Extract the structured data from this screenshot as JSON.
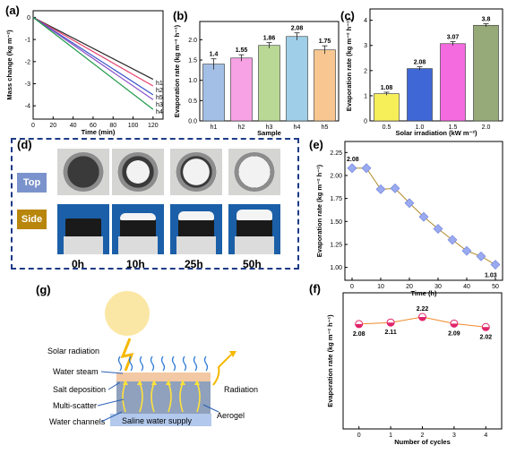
{
  "panels": {
    "a": "(a)",
    "b": "(b)",
    "c": "(c)",
    "d": "(d)",
    "e": "(e)",
    "f": "(f)",
    "g": "(g)"
  },
  "chart_data": [
    {
      "id": "a",
      "type": "line",
      "xlabel": "Time (min)",
      "ylabel": "Mass change (kg m⁻²)",
      "xlim": [
        0,
        130
      ],
      "ylim": [
        -4.6,
        0.3
      ],
      "xticks": [
        0,
        20,
        40,
        60,
        80,
        100,
        120
      ],
      "yticks": [
        0,
        -1,
        -2,
        -3,
        -4
      ],
      "series": [
        {
          "name": "h1",
          "color": "#2b2b2b",
          "x": [
            0,
            120
          ],
          "y": [
            0,
            -2.8
          ]
        },
        {
          "name": "h2",
          "color": "#e8426c",
          "x": [
            0,
            120
          ],
          "y": [
            0,
            -3.1
          ]
        },
        {
          "name": "h5",
          "color": "#3953c9",
          "x": [
            0,
            120
          ],
          "y": [
            0,
            -3.5
          ]
        },
        {
          "name": "h3",
          "color": "#8a4fc7",
          "x": [
            0,
            120
          ],
          "y": [
            0,
            -3.72
          ]
        },
        {
          "name": "h4",
          "color": "#1f9a4a",
          "x": [
            0,
            120
          ],
          "y": [
            0,
            -4.16
          ]
        }
      ]
    },
    {
      "id": "b",
      "type": "bar",
      "xlabel": "Sample",
      "ylabel": "Evaporation rate (kg m⁻² h⁻¹)",
      "ylim": [
        0,
        2.45
      ],
      "yticks": [
        0.0,
        0.5,
        1.0,
        1.5,
        2.0
      ],
      "categories": [
        "h1",
        "h2",
        "h3",
        "h4",
        "h5"
      ],
      "values": [
        1.4,
        1.55,
        1.86,
        2.08,
        1.75
      ],
      "errors": [
        0.13,
        0.08,
        0.07,
        0.09,
        0.1
      ],
      "labels": [
        "1.4",
        "1.55",
        "1.86",
        "2.08",
        "1.75"
      ],
      "colors": [
        "#a3bfe5",
        "#f6a2e4",
        "#b9d896",
        "#9fcfe8",
        "#f8c791"
      ]
    },
    {
      "id": "c",
      "type": "bar",
      "xlabel": "Solar irradiation (kW m⁻²)",
      "ylabel": "Evaporation rate (kg m⁻² h⁻¹)",
      "ylim": [
        0,
        4.45
      ],
      "yticks": [
        0,
        1,
        2,
        3,
        4
      ],
      "categories": [
        "0.5",
        "1.0",
        "1.5",
        "2.0"
      ],
      "values": [
        1.08,
        2.08,
        3.07,
        3.8
      ],
      "errors": [
        0.06,
        0.07,
        0.08,
        0.06
      ],
      "labels": [
        "1.08",
        "2.08",
        "3.07",
        "3.8"
      ],
      "colors": [
        "#f7ef5a",
        "#3f68d6",
        "#f46be0",
        "#95aa78"
      ]
    },
    {
      "id": "e",
      "type": "line",
      "xlabel": "Time (h)",
      "ylabel": "Evaporation rate (kg m⁻² h⁻¹)",
      "xlim": [
        -2.5,
        52.5
      ],
      "ylim": [
        0.86,
        2.37
      ],
      "xticks": [
        0,
        10,
        20,
        30,
        40,
        50
      ],
      "yticks": [
        1.0,
        1.25,
        1.5,
        1.75,
        2.0,
        2.25
      ],
      "ytick_labels": [
        "1.00",
        "1.25",
        "1.50",
        "1.75",
        "2.00",
        "2.25"
      ],
      "x": [
        0,
        5,
        10,
        15,
        20,
        25,
        30,
        35,
        40,
        45,
        50
      ],
      "y": [
        2.08,
        2.08,
        1.85,
        1.86,
        1.7,
        1.55,
        1.42,
        1.3,
        1.18,
        1.12,
        1.03
      ],
      "annotations": [
        "2.08",
        "1.03"
      ],
      "color": "#9aaaf0"
    },
    {
      "id": "f",
      "type": "line",
      "xlabel": "Number of cycles",
      "ylabel": "Evaporation rate (kg m⁻² h⁻¹)",
      "xlim": [
        -0.5,
        4.5
      ],
      "ylim": [
        0,
        2.7
      ],
      "xticks": [
        0,
        1,
        2,
        3,
        4
      ],
      "x": [
        0,
        1,
        2,
        3,
        4
      ],
      "y": [
        2.08,
        2.11,
        2.22,
        2.09,
        2.02
      ],
      "labels": [
        "2.08",
        "2.11",
        "2.22",
        "2.09",
        "2.02"
      ],
      "color": "#e0246a"
    }
  ],
  "photos": {
    "rows": [
      "Top",
      "Side"
    ],
    "times": [
      "0h",
      "10h",
      "25h",
      "50h"
    ],
    "salt_level": [
      0,
      0.5,
      0.7,
      1.0
    ],
    "top_color": "#7b93cc",
    "side_color": "#b8860b"
  },
  "schematic": {
    "labels": {
      "solar": "Solar radiation",
      "steam": "Water steam",
      "salt": "Salt deposition",
      "scatter": "Multi-scatter",
      "channels": "Water channels",
      "radiation": "Radiation",
      "aerogel": "Aerogel",
      "supply": "Saline water supply"
    }
  }
}
